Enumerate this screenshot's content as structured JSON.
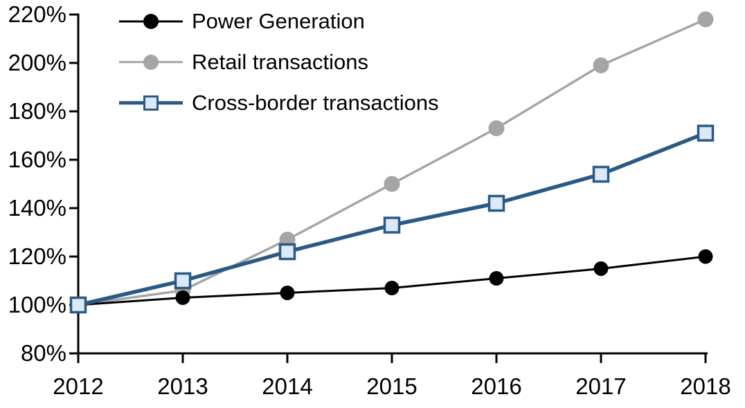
{
  "chart_data": {
    "type": "line",
    "x": [
      "2012",
      "2013",
      "2014",
      "2015",
      "2016",
      "2017",
      "2018"
    ],
    "series": [
      {
        "name": "Power Generation",
        "color": "#000000",
        "line_width": 3,
        "marker": "circle",
        "marker_size": 21,
        "z": 1,
        "values": [
          100,
          103,
          105,
          107,
          111,
          115,
          120
        ]
      },
      {
        "name": "Retail transactions",
        "color": "#A5A5A5",
        "line_width": 3.5,
        "marker": "circle",
        "marker_size": 23,
        "z": 0,
        "values": [
          100,
          106,
          127,
          150,
          173,
          199,
          218
        ]
      },
      {
        "name": "Cross-border transactions",
        "color": "#2A5A84",
        "line_width": 5.5,
        "marker": "square",
        "marker_fill": "#DCE9F6",
        "marker_size": 21,
        "marker_stroke_width": 3.5,
        "z": 2,
        "values": [
          100,
          110,
          122,
          133,
          142,
          154,
          171
        ]
      }
    ],
    "ylim": [
      80,
      220
    ],
    "ytick_step": 20,
    "ytick_suffix": "%",
    "ytick_labels": [
      "80%",
      "100%",
      "120%",
      "140%",
      "160%",
      "180%",
      "200%",
      "220%"
    ],
    "xtick_labels": [
      "2012",
      "2013",
      "2014",
      "2015",
      "2016",
      "2017",
      "2018"
    ],
    "grid": false,
    "legend_position": "top-left",
    "axis_color": "#000000",
    "background_color": "#FFFFFF"
  }
}
